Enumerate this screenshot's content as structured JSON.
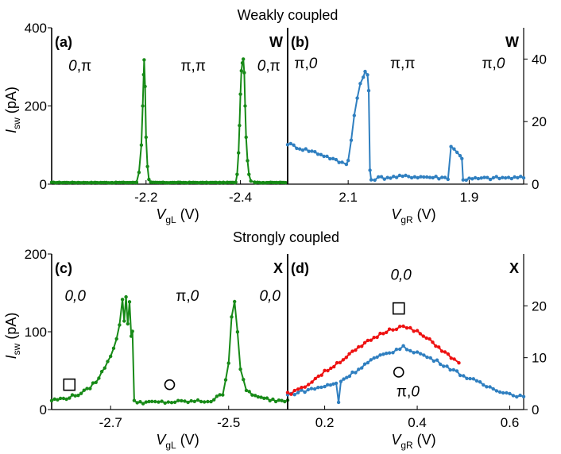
{
  "section_titles": {
    "top": "Weakly coupled",
    "bottom": "Strongly coupled"
  },
  "colors": {
    "green": "#178a17",
    "blue": "#2f7fc0",
    "red": "#ee1111"
  },
  "chart_data": [
    {
      "id": "a",
      "type": "line",
      "label": "(a)",
      "corner": "W",
      "xlabel": "V",
      "xlabel_sub": "gL",
      "xlabel_unit": " (V)",
      "ylabel": "I",
      "ylabel_sub": "sw",
      "ylabel_unit": " (pA)",
      "xlim": [
        -2.0,
        -2.5
      ],
      "ylim": [
        0,
        400
      ],
      "xticks": [
        -2.2,
        -2.4
      ],
      "xtick_labels": [
        "-2.2",
        "-2.4"
      ],
      "yticks": [
        0,
        200,
        400
      ],
      "ytick_labels": [
        "0",
        "200",
        "400"
      ],
      "regions": [
        {
          "text": "0,π",
          "x": -2.06,
          "y": 290,
          "italic": "0"
        },
        {
          "text": "π,π",
          "x": -2.3,
          "y": 290,
          "italic": ""
        },
        {
          "text": "0,π",
          "x": -2.46,
          "y": 290,
          "italic": "0"
        }
      ],
      "series": [
        {
          "color": "green",
          "dx": 0.004,
          "base": 4,
          "noise": 1.5,
          "peaks": [
            {
              "pts": [
                [
                  -2.18,
                  5
                ],
                [
                  -2.185,
                  30
                ],
                [
                  -2.19,
                  100
                ],
                [
                  -2.193,
                  200
                ],
                [
                  -2.195,
                  280
                ],
                [
                  -2.196,
                  318
                ],
                [
                  -2.198,
                  250
                ],
                [
                  -2.2,
                  120
                ],
                [
                  -2.203,
                  45
                ],
                [
                  -2.206,
                  12
                ],
                [
                  -2.21,
                  5
                ]
              ]
            },
            {
              "pts": [
                [
                  -2.39,
                  5
                ],
                [
                  -2.393,
                  25
                ],
                [
                  -2.396,
                  80
                ],
                [
                  -2.398,
                  150
                ],
                [
                  -2.4,
                  230
                ],
                [
                  -2.402,
                  290
                ],
                [
                  -2.404,
                  310
                ],
                [
                  -2.406,
                  320
                ],
                [
                  -2.408,
                  285
                ],
                [
                  -2.41,
                  200
                ],
                [
                  -2.412,
                  120
                ],
                [
                  -2.415,
                  60
                ],
                [
                  -2.418,
                  25
                ],
                [
                  -2.422,
                  8
                ],
                [
                  -2.43,
                  5
                ]
              ]
            }
          ]
        }
      ]
    },
    {
      "id": "b",
      "type": "line",
      "label": "(b)",
      "corner": "W",
      "xlabel": "V",
      "xlabel_sub": "gR",
      "xlabel_unit": " (V)",
      "xlim": [
        2.2,
        1.81
      ],
      "ylim": [
        0,
        50
      ],
      "xticks": [
        2.1,
        1.9
      ],
      "xtick_labels": [
        "2.1",
        "1.9"
      ],
      "yticks": [
        0,
        20,
        40
      ],
      "ytick_labels": [
        "0",
        "20",
        "40"
      ],
      "yaxis_side": "right",
      "regions": [
        {
          "text": "π,0",
          "x": 2.17,
          "y": 37,
          "italic": "0"
        },
        {
          "text": "π,π",
          "x": 2.01,
          "y": 37,
          "italic": ""
        },
        {
          "text": "π,0",
          "x": 1.86,
          "y": 37,
          "italic": "0"
        }
      ],
      "series": [
        {
          "color": "blue",
          "pts": [
            [
              2.2,
              13
            ],
            [
              2.18,
              11.5
            ],
            [
              2.16,
              10.5
            ],
            [
              2.14,
              9.2
            ],
            [
              2.13,
              8.4
            ],
            [
              2.12,
              7.5
            ],
            [
              2.11,
              6.8
            ],
            [
              2.103,
              6.5
            ],
            [
              2.1,
              8
            ],
            [
              2.095,
              14
            ],
            [
              2.09,
              22
            ],
            [
              2.085,
              28
            ],
            [
              2.08,
              32
            ],
            [
              2.075,
              34
            ],
            [
              2.072,
              36
            ],
            [
              2.068,
              35
            ],
            [
              2.066,
              30
            ],
            [
              2.064,
              4
            ],
            [
              2.062,
              1.5
            ],
            [
              2.05,
              2
            ],
            [
              2.0,
              2.5
            ],
            [
              1.96,
              2.2
            ],
            [
              1.935,
              2
            ],
            [
              1.93,
              12
            ],
            [
              1.925,
              11.5
            ],
            [
              1.92,
              10
            ],
            [
              1.915,
              9
            ],
            [
              1.912,
              8.5
            ],
            [
              1.91,
              1.5
            ],
            [
              1.88,
              1.8
            ],
            [
              1.85,
              2
            ],
            [
              1.81,
              2
            ]
          ]
        }
      ]
    },
    {
      "id": "c",
      "type": "line",
      "label": "(c)",
      "corner": "X",
      "xlabel": "V",
      "xlabel_sub": "gL",
      "xlabel_unit": " (V)",
      "ylabel": "I",
      "ylabel_sub": "sw",
      "ylabel_unit": " (pA)",
      "xlim": [
        -2.8,
        -2.4
      ],
      "ylim": [
        0,
        200
      ],
      "xticks": [
        -2.7,
        -2.5
      ],
      "xtick_labels": [
        "-2.7",
        "-2.5"
      ],
      "yticks": [
        0,
        100,
        200
      ],
      "ytick_labels": [
        "0",
        "100",
        "200"
      ],
      "regions": [
        {
          "text": "0,0",
          "x": -2.76,
          "y": 140,
          "italic": "all"
        },
        {
          "text": "π,0",
          "x": -2.57,
          "y": 140,
          "italic": "0"
        },
        {
          "text": "0,0",
          "x": -2.43,
          "y": 140,
          "italic": "all"
        }
      ],
      "markers": [
        {
          "shape": "square",
          "x": -2.77,
          "y": 32
        },
        {
          "shape": "circle",
          "x": -2.6,
          "y": 32
        }
      ],
      "series": [
        {
          "color": "green",
          "pts": [
            [
              -2.8,
              12
            ],
            [
              -2.78,
              14
            ],
            [
              -2.76,
              18
            ],
            [
              -2.74,
              25
            ],
            [
              -2.72,
              40
            ],
            [
              -2.7,
              70
            ],
            [
              -2.69,
              90
            ],
            [
              -2.685,
              110
            ],
            [
              -2.68,
              140
            ],
            [
              -2.677,
              115
            ],
            [
              -2.674,
              145
            ],
            [
              -2.671,
              110
            ],
            [
              -2.668,
              140
            ],
            [
              -2.665,
              95
            ],
            [
              -2.663,
              100
            ],
            [
              -2.66,
              10
            ],
            [
              -2.63,
              9
            ],
            [
              -2.58,
              10
            ],
            [
              -2.53,
              11
            ],
            [
              -2.51,
              20
            ],
            [
              -2.5,
              60
            ],
            [
              -2.495,
              120
            ],
            [
              -2.49,
              140
            ],
            [
              -2.485,
              100
            ],
            [
              -2.48,
              50
            ],
            [
              -2.47,
              25
            ],
            [
              -2.45,
              15
            ],
            [
              -2.42,
              12
            ],
            [
              -2.4,
              12
            ]
          ]
        }
      ]
    },
    {
      "id": "d",
      "type": "line",
      "label": "(d)",
      "corner": "X",
      "xlabel": "V",
      "xlabel_sub": "gR",
      "xlabel_unit": " (V)",
      "xlim": [
        0.12,
        0.63
      ],
      "ylim": [
        0,
        30
      ],
      "xticks": [
        0.2,
        0.4,
        0.6
      ],
      "xtick_labels": [
        "0.2",
        "0.4",
        "0.6"
      ],
      "yticks": [
        0,
        10,
        20
      ],
      "ytick_labels": [
        "0",
        "10",
        "20"
      ],
      "yaxis_side": "right",
      "regions": [
        {
          "text": "0,0",
          "x": 0.365,
          "y": 25,
          "italic": "all"
        },
        {
          "text": "π,0",
          "x": 0.38,
          "y": 2.5,
          "italic": "0"
        }
      ],
      "markers": [
        {
          "shape": "square",
          "x": 0.36,
          "y": 19.5
        },
        {
          "shape": "circle",
          "x": 0.36,
          "y": 7.2
        }
      ],
      "series": [
        {
          "color": "blue",
          "pts": [
            [
              0.12,
              2.8
            ],
            [
              0.15,
              3.5
            ],
            [
              0.2,
              4.5
            ],
            [
              0.225,
              5
            ],
            [
              0.23,
              1.5
            ],
            [
              0.235,
              5.5
            ],
            [
              0.26,
              7
            ],
            [
              0.3,
              9.5
            ],
            [
              0.34,
              11
            ],
            [
              0.37,
              12
            ],
            [
              0.4,
              11
            ],
            [
              0.45,
              9
            ],
            [
              0.5,
              6.5
            ],
            [
              0.55,
              4.5
            ],
            [
              0.6,
              3
            ],
            [
              0.63,
              2.5
            ]
          ]
        },
        {
          "color": "red",
          "pts": [
            [
              0.12,
              3
            ],
            [
              0.15,
              4
            ],
            [
              0.18,
              6
            ],
            [
              0.22,
              8.5
            ],
            [
              0.26,
              11
            ],
            [
              0.3,
              13.5
            ],
            [
              0.34,
              15.5
            ],
            [
              0.37,
              16
            ],
            [
              0.4,
              15
            ],
            [
              0.44,
              12.5
            ],
            [
              0.48,
              9.5
            ],
            [
              0.49,
              9
            ]
          ]
        }
      ]
    }
  ]
}
